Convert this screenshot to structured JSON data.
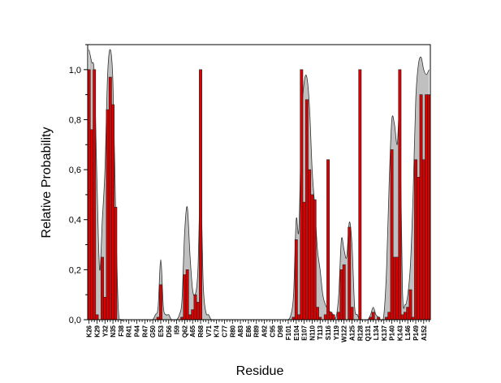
{
  "chart_data": {
    "type": "bar",
    "xlabel": "Residue",
    "ylabel": "Relative Probability",
    "ylim": [
      0.0,
      1.1
    ],
    "yticks": [
      "0,0",
      "0,2",
      "0,4",
      "0,6",
      "0,8",
      "1,0"
    ],
    "ytick_values": [
      0,
      0.2,
      0.4,
      0.6,
      0.8,
      1.0
    ],
    "x_start": 26,
    "x_end": 154,
    "x_labels": [
      "K26",
      "K29",
      "Y32",
      "N35",
      "F38",
      "R41",
      "P44",
      "R47",
      "G50",
      "E53",
      "D56",
      "I59",
      "Q62",
      "A65",
      "R68",
      "V71",
      "K74",
      "C77",
      "R80",
      "A83",
      "E86",
      "R89",
      "A92",
      "C95",
      "D98",
      "F101",
      "E104",
      "E107",
      "N110",
      "T113",
      "S116",
      "Y119",
      "W122",
      "A125",
      "R128",
      "Q131",
      "L134",
      "K137",
      "P140",
      "K143",
      "L146",
      "P149",
      "A152"
    ],
    "series": [
      {
        "mark": "bar",
        "x": [
          26,
          27,
          28,
          29,
          30,
          31,
          32,
          33,
          34,
          35,
          36,
          37,
          38,
          39,
          40,
          41,
          42,
          43,
          44,
          45,
          46,
          47,
          48,
          49,
          50,
          51,
          52,
          53,
          54,
          55,
          56,
          57,
          58,
          59,
          60,
          61,
          62,
          63,
          64,
          65,
          66,
          67,
          68,
          69,
          70,
          71,
          72,
          73,
          74,
          75,
          76,
          77,
          78,
          79,
          80,
          81,
          82,
          83,
          84,
          85,
          86,
          87,
          88,
          89,
          90,
          91,
          92,
          93,
          94,
          95,
          96,
          97,
          98,
          99,
          100,
          101,
          102,
          103,
          104,
          105,
          106,
          107,
          108,
          109,
          110,
          111,
          112,
          113,
          114,
          115,
          116,
          117,
          118,
          119,
          120,
          121,
          122,
          123,
          124,
          125,
          126,
          127,
          128,
          129,
          130,
          131,
          132,
          133,
          134,
          135,
          136,
          137,
          138,
          139,
          140,
          141,
          142,
          143,
          144,
          145,
          146,
          147,
          148,
          149,
          150,
          151,
          152,
          153,
          154
        ],
        "values": [
          1.0,
          0.76,
          1.0,
          0.02,
          0.0,
          0.25,
          0.09,
          0.84,
          0.97,
          0.86,
          0.45,
          0.0,
          0,
          0,
          0,
          0,
          0,
          0,
          0,
          0,
          0,
          0,
          0,
          0,
          0,
          0,
          0.01,
          0.14,
          0.0,
          0,
          0,
          0,
          0,
          0,
          0,
          0.01,
          0.18,
          0.2,
          0.02,
          0.04,
          0.1,
          0.07,
          1.0,
          0.0,
          0,
          0,
          0,
          0,
          0,
          0,
          0,
          0,
          0,
          0,
          0,
          0,
          0,
          0,
          0,
          0,
          0,
          0,
          0,
          0,
          0,
          0,
          0,
          0,
          0,
          0,
          0,
          0,
          0,
          0,
          0,
          0,
          0,
          0.01,
          0.32,
          0.02,
          1.0,
          0.47,
          0.88,
          0.6,
          0.5,
          0.48,
          0.05,
          0.01,
          0.0,
          0.02,
          0.64,
          0.03,
          0.02,
          0.0,
          0.03,
          0.2,
          0.22,
          0.0,
          0.37,
          0.05,
          0.0,
          0.0,
          1.0,
          0.0,
          0,
          0,
          0.01,
          0.03,
          0.0,
          0.01,
          0.0,
          0,
          0.01,
          0.03,
          0.68,
          0.25,
          0.25,
          1.0,
          0.02,
          0.03,
          0.05,
          0.12,
          0.01,
          0.64,
          0.57,
          0.9,
          0.64,
          0.9,
          0.9
        ]
      },
      {
        "mark": "area",
        "x": [
          26,
          27,
          28,
          29,
          30,
          31,
          32,
          33,
          34,
          35,
          36,
          37,
          38,
          39,
          40,
          41,
          42,
          43,
          44,
          45,
          46,
          47,
          48,
          49,
          50,
          51,
          52,
          53,
          54,
          55,
          56,
          57,
          58,
          59,
          60,
          61,
          62,
          63,
          64,
          65,
          66,
          67,
          68,
          69,
          70,
          71,
          72,
          73,
          74,
          75,
          76,
          77,
          78,
          79,
          80,
          81,
          82,
          83,
          84,
          85,
          86,
          87,
          88,
          89,
          90,
          91,
          92,
          93,
          94,
          95,
          96,
          97,
          98,
          99,
          100,
          101,
          102,
          103,
          104,
          105,
          106,
          107,
          108,
          109,
          110,
          111,
          112,
          113,
          114,
          115,
          116,
          117,
          118,
          119,
          120,
          121,
          122,
          123,
          124,
          125,
          126,
          127,
          128,
          129,
          130,
          131,
          132,
          133,
          134,
          135,
          136,
          137,
          138,
          139,
          140,
          141,
          142,
          143,
          144,
          145,
          146,
          147,
          148,
          149,
          150,
          151,
          152,
          153,
          154
        ],
        "values": [
          1.08,
          1.03,
          0.98,
          0.55,
          0.2,
          0.4,
          0.6,
          0.98,
          1.08,
          0.95,
          0.45,
          0.05,
          0,
          0,
          0,
          0,
          0,
          0,
          0,
          0,
          0,
          0,
          0,
          0,
          0,
          0.02,
          0.05,
          0.24,
          0.05,
          0.02,
          0.02,
          0.0,
          0.0,
          0.0,
          0.02,
          0.08,
          0.35,
          0.45,
          0.26,
          0.12,
          0.1,
          0.2,
          0.55,
          0.14,
          0.03,
          0.02,
          0.0,
          0,
          0,
          0,
          0,
          0,
          0,
          0,
          0,
          0,
          0,
          0,
          0,
          0,
          0,
          0,
          0,
          0,
          0,
          0,
          0,
          0,
          0,
          0,
          0,
          0,
          0,
          0,
          0,
          0,
          0.02,
          0.1,
          0.4,
          0.36,
          0.8,
          0.95,
          0.97,
          0.85,
          0.6,
          0.45,
          0.28,
          0.2,
          0.1,
          0.06,
          0.04,
          0.03,
          0.02,
          0.01,
          0.1,
          0.32,
          0.28,
          0.25,
          0.39,
          0.3,
          0.05,
          0.02,
          0.0,
          0.0,
          0.0,
          0.0,
          0.02,
          0.05,
          0.02,
          0.01,
          0.0,
          0.02,
          0.2,
          0.55,
          0.8,
          0.78,
          0.7,
          0.8,
          0.12,
          0.06,
          0.1,
          0.22,
          0.5,
          0.88,
          1.02,
          1.05,
          1.0,
          0.98,
          1.0
        ]
      }
    ],
    "colors": {
      "bar_fill": "#dd0000",
      "bar_edge": "#222222",
      "area_fill": "#c0c0c0",
      "area_edge": "#333333",
      "axis": "#000000"
    }
  }
}
